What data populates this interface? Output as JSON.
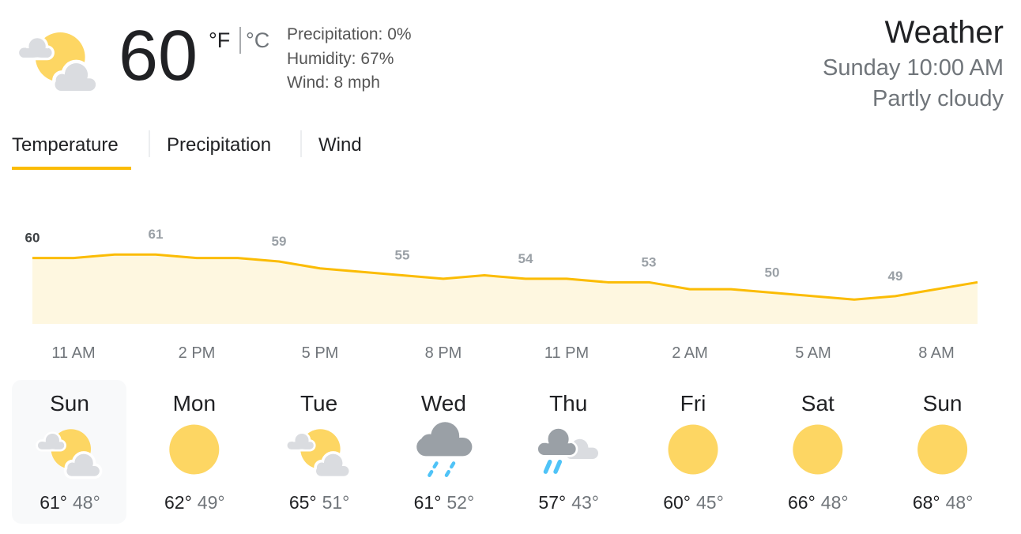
{
  "current": {
    "temperature": 60,
    "unit_f": "°F",
    "unit_c": "°C",
    "precipitation": "Precipitation: 0%",
    "humidity": "Humidity: 67%",
    "wind": "Wind: 8 mph"
  },
  "header": {
    "title": "Weather",
    "time": "Sunday 10:00 AM",
    "condition": "Partly cloudy"
  },
  "tabs": [
    "Temperature",
    "Precipitation",
    "Wind"
  ],
  "chart_data": {
    "type": "line",
    "categories": [
      null,
      "11 AM",
      null,
      null,
      "2 PM",
      null,
      null,
      "5 PM",
      null,
      null,
      "8 PM",
      null,
      null,
      "11 PM",
      null,
      null,
      "2 AM",
      null,
      null,
      "5 AM",
      null,
      null,
      "8 AM",
      null
    ],
    "values": [
      60,
      60,
      61,
      61,
      60,
      60,
      59,
      57,
      56,
      55,
      54,
      55,
      54,
      54,
      53,
      53,
      51,
      51,
      50,
      49,
      48,
      49,
      51,
      53
    ],
    "color": "#fbbc04",
    "ylim": [
      41,
      82
    ]
  },
  "days": [
    {
      "name": "Sun",
      "high": "61°",
      "low": "48°"
    },
    {
      "name": "Mon",
      "high": "62°",
      "low": "49°"
    },
    {
      "name": "Tue",
      "high": "65°",
      "low": "51°"
    },
    {
      "name": "Wed",
      "high": "61°",
      "low": "52°"
    },
    {
      "name": "Thu",
      "high": "57°",
      "low": "43°"
    },
    {
      "name": "Fri",
      "high": "60°",
      "low": "45°"
    },
    {
      "name": "Sat",
      "high": "66°",
      "low": "48°"
    },
    {
      "name": "Sun",
      "high": "68°",
      "low": "48°"
    }
  ]
}
